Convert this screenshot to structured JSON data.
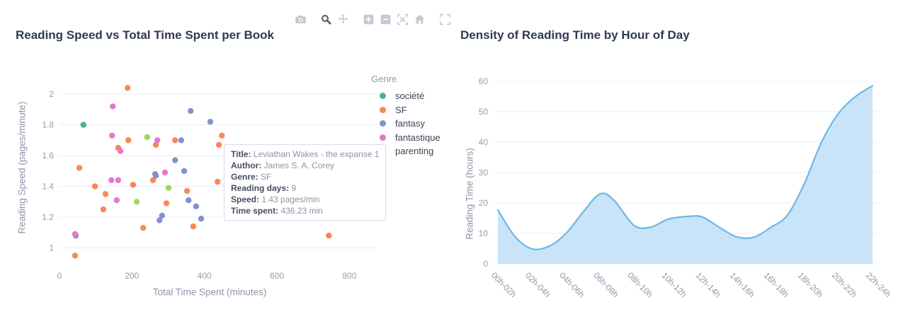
{
  "modebar": {
    "icons": [
      "camera",
      "zoom",
      "pan",
      "zoom-in",
      "zoom-out",
      "autoscale",
      "reset-home",
      "fullscreen"
    ],
    "active": "zoom",
    "inactive_color": "#c3c8d2",
    "active_color": "#555b68"
  },
  "tooltip": {
    "rows": [
      {
        "label": "Title:",
        "value": "Leviathan Wakes - the expanse 1"
      },
      {
        "label": "Author:",
        "value": "James S. A. Corey"
      },
      {
        "label": "Genre:",
        "value": "SF"
      },
      {
        "label": "Reading days:",
        "value": "9"
      },
      {
        "label": "Speed:",
        "value": "1.43 pages/min"
      },
      {
        "label": "Time spent:",
        "value": "436.23 min"
      }
    ]
  },
  "chart_data": [
    {
      "type": "scatter",
      "title": "Reading Speed vs Total Time Spent per Book",
      "xlabel": "Total Time Spent (minutes)",
      "ylabel": "Reading Speed (pages/minute)",
      "xlim": [
        0,
        880
      ],
      "ylim": [
        0.88,
        2.08
      ],
      "xticks": [
        0,
        200,
        400,
        600,
        800
      ],
      "yticks": [
        1,
        1.2,
        1.4,
        1.6,
        1.8,
        2
      ],
      "grid": true,
      "legend_title": "Genre",
      "legend_position": "right",
      "series": [
        {
          "name": "société",
          "color": "#43b3a0",
          "points": [
            [
              66,
              1.8
            ]
          ]
        },
        {
          "name": "SF",
          "color": "#fb8656",
          "points": [
            [
              188,
              2.04
            ],
            [
              448,
              1.73
            ],
            [
              440,
              1.67
            ],
            [
              190,
              1.7
            ],
            [
              319,
              1.7
            ],
            [
              266,
              1.67
            ],
            [
              162,
              1.65
            ],
            [
              55,
              1.52
            ],
            [
              258,
              1.44
            ],
            [
              436.23,
              1.43
            ],
            [
              203,
              1.41
            ],
            [
              98,
              1.4
            ],
            [
              352,
              1.37
            ],
            [
              127,
              1.35
            ],
            [
              295,
              1.29
            ],
            [
              121,
              1.25
            ],
            [
              369,
              1.14
            ],
            [
              231,
              1.13
            ],
            [
              743,
              1.08
            ],
            [
              43,
              0.95
            ]
          ]
        },
        {
          "name": "fantasy",
          "color": "#8093cc",
          "points": [
            [
              362,
              1.89
            ],
            [
              416,
              1.82
            ],
            [
              336,
              1.7
            ],
            [
              319,
              1.57
            ],
            [
              344,
              1.5
            ],
            [
              264,
              1.48
            ],
            [
              266,
              1.47
            ],
            [
              356,
              1.31
            ],
            [
              377,
              1.27
            ],
            [
              283,
              1.21
            ],
            [
              391,
              1.19
            ],
            [
              276,
              1.18
            ],
            [
              45,
              1.08
            ]
          ]
        },
        {
          "name": "fantastique",
          "color": "#e379cd",
          "points": [
            [
              147,
              1.92
            ],
            [
              145,
              1.73
            ],
            [
              270,
              1.7
            ],
            [
              168,
              1.63
            ],
            [
              291,
              1.49
            ],
            [
              143,
              1.44
            ],
            [
              162,
              1.44
            ],
            [
              158,
              1.31
            ],
            [
              43,
              1.09
            ]
          ]
        },
        {
          "name": "parenting",
          "color": "#a3d65c",
          "points": [
            [
              242,
              1.72
            ],
            [
              301,
              1.39
            ],
            [
              213,
              1.3
            ]
          ]
        }
      ],
      "highlight_point": {
        "series": "SF",
        "x": 436.23,
        "y": 1.43
      }
    },
    {
      "type": "area",
      "title": "Density of Reading Time by Hour of Day",
      "xlabel": "",
      "ylabel": "Reading Time (hours)",
      "categories": [
        "00h-02h",
        "02h-04h",
        "04h-06h",
        "06h-08h",
        "08h-10h",
        "10h-12h",
        "12h-14h",
        "14h-16h",
        "16h-18h",
        "18h-20h",
        "20h-22h",
        "22h-24h"
      ],
      "values": [
        17.7,
        4.9,
        10.0,
        23.0,
        12.6,
        14.7,
        15.4,
        8.9,
        11.9,
        26.5,
        49.5,
        58.6
      ],
      "curve_samples": [
        [
          0,
          17.7
        ],
        [
          0.5,
          9.0
        ],
        [
          1,
          4.9
        ],
        [
          1.5,
          5.8
        ],
        [
          2,
          10.0
        ],
        [
          2.5,
          17.0
        ],
        [
          3,
          23.0
        ],
        [
          3.4,
          21.0
        ],
        [
          4,
          12.6
        ],
        [
          4.5,
          12.1
        ],
        [
          5,
          14.7
        ],
        [
          5.6,
          15.6
        ],
        [
          6,
          15.4
        ],
        [
          6.5,
          12.0
        ],
        [
          7,
          8.9
        ],
        [
          7.5,
          8.7
        ],
        [
          8,
          11.9
        ],
        [
          8.5,
          16.0
        ],
        [
          9,
          26.5
        ],
        [
          9.5,
          40.0
        ],
        [
          10,
          49.5
        ],
        [
          10.5,
          55.0
        ],
        [
          11,
          58.6
        ]
      ],
      "yticks": [
        0,
        10,
        20,
        30,
        40,
        50,
        60
      ],
      "ylim": [
        0,
        62
      ],
      "grid": true,
      "legend": "none",
      "fill_color": "#c9e4f8",
      "line_color": "#6db7e8"
    }
  ]
}
